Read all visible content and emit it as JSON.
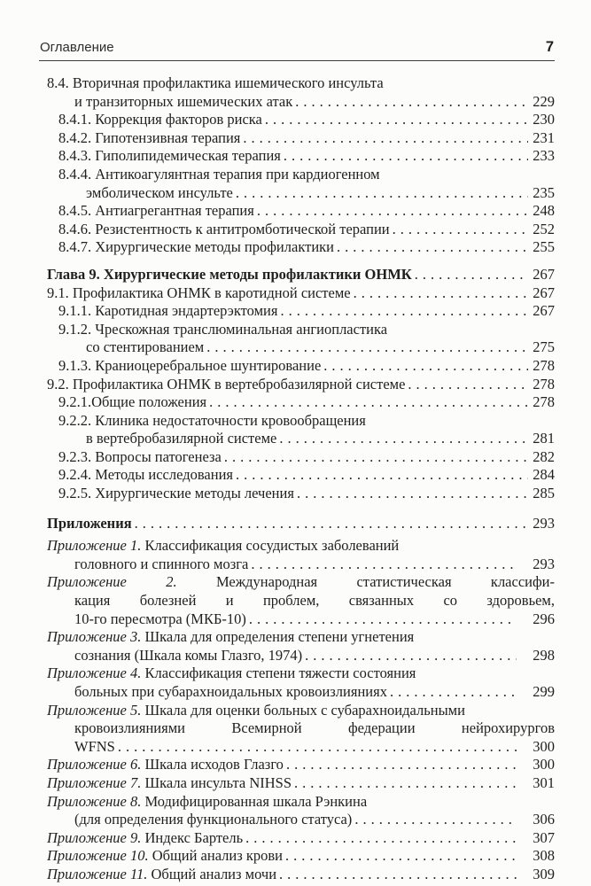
{
  "page": {
    "header": {
      "running_title": "Оглавление",
      "page_number": "7"
    },
    "toc": {
      "entries": [
        {
          "indent": 1,
          "page": "229",
          "page_gap": false,
          "gap_before": "none",
          "lines": [
            {
              "cont": false,
              "justify": false,
              "segments": [
                {
                  "text": "8.4. Вторичная профилактика ишемического инсульта",
                  "style": "normal"
                }
              ]
            },
            {
              "cont": true,
              "justify": false,
              "segments": [
                {
                  "text": "и транзиторных ишемических атак",
                  "style": "normal"
                }
              ]
            }
          ]
        },
        {
          "indent": 2,
          "page": "230",
          "page_gap": false,
          "gap_before": "none",
          "lines": [
            {
              "cont": false,
              "justify": false,
              "segments": [
                {
                  "text": "8.4.1. Коррекция факторов риска",
                  "style": "normal"
                }
              ]
            }
          ]
        },
        {
          "indent": 2,
          "page": "231",
          "page_gap": false,
          "gap_before": "none",
          "lines": [
            {
              "cont": false,
              "justify": false,
              "segments": [
                {
                  "text": "8.4.2. Гипотензивная терапия",
                  "style": "normal"
                }
              ]
            }
          ]
        },
        {
          "indent": 2,
          "page": "233",
          "page_gap": false,
          "gap_before": "none",
          "lines": [
            {
              "cont": false,
              "justify": false,
              "segments": [
                {
                  "text": "8.4.3. Гиполипидемическая терапия",
                  "style": "normal"
                }
              ]
            }
          ]
        },
        {
          "indent": 2,
          "page": "235",
          "page_gap": false,
          "gap_before": "none",
          "lines": [
            {
              "cont": false,
              "justify": false,
              "segments": [
                {
                  "text": "8.4.4. Антикоагулянтная терапия при кардиогенном",
                  "style": "normal"
                }
              ]
            },
            {
              "cont": true,
              "justify": false,
              "segments": [
                {
                  "text": "эмболическом инсульте",
                  "style": "normal"
                }
              ]
            }
          ]
        },
        {
          "indent": 2,
          "page": "248",
          "page_gap": false,
          "gap_before": "none",
          "lines": [
            {
              "cont": false,
              "justify": false,
              "segments": [
                {
                  "text": "8.4.5. Антиагрегантная терапия",
                  "style": "normal"
                }
              ]
            }
          ]
        },
        {
          "indent": 2,
          "page": "252",
          "page_gap": false,
          "gap_before": "none",
          "lines": [
            {
              "cont": false,
              "justify": false,
              "segments": [
                {
                  "text": "8.4.6. Резистентность к антитромботической терапии",
                  "style": "normal"
                }
              ]
            }
          ]
        },
        {
          "indent": 2,
          "page": "255",
          "page_gap": false,
          "gap_before": "none",
          "lines": [
            {
              "cont": false,
              "justify": false,
              "segments": [
                {
                  "text": "8.4.7. Хирургические методы профилактики",
                  "style": "normal"
                }
              ]
            }
          ]
        },
        {
          "indent": 1,
          "page": "267",
          "page_gap": false,
          "gap_before": "md",
          "lines": [
            {
              "cont": false,
              "justify": false,
              "segments": [
                {
                  "text": "Глава 9. Хирургические методы профилактики ОНМК",
                  "style": "bold"
                }
              ]
            }
          ]
        },
        {
          "indent": 1,
          "page": "267",
          "page_gap": false,
          "gap_before": "none",
          "lines": [
            {
              "cont": false,
              "justify": false,
              "segments": [
                {
                  "text": "9.1. Профилактика ОНМК в каротидной системе",
                  "style": "normal"
                }
              ]
            }
          ]
        },
        {
          "indent": 2,
          "page": "267",
          "page_gap": false,
          "gap_before": "none",
          "lines": [
            {
              "cont": false,
              "justify": false,
              "segments": [
                {
                  "text": "9.1.1. Каротидная эндартерэктомия",
                  "style": "normal"
                }
              ]
            }
          ]
        },
        {
          "indent": 2,
          "page": "275",
          "page_gap": false,
          "gap_before": "none",
          "lines": [
            {
              "cont": false,
              "justify": false,
              "segments": [
                {
                  "text": "9.1.2. Чрескожная транслюминальная ангиопластика",
                  "style": "normal"
                }
              ]
            },
            {
              "cont": true,
              "justify": false,
              "segments": [
                {
                  "text": "со стентированием",
                  "style": "normal"
                }
              ]
            }
          ]
        },
        {
          "indent": 2,
          "page": "278",
          "page_gap": false,
          "gap_before": "none",
          "lines": [
            {
              "cont": false,
              "justify": false,
              "segments": [
                {
                  "text": "9.1.3. Краниоцеребральное шунтирование",
                  "style": "normal"
                }
              ]
            }
          ]
        },
        {
          "indent": 1,
          "page": "278",
          "page_gap": false,
          "gap_before": "none",
          "lines": [
            {
              "cont": false,
              "justify": false,
              "segments": [
                {
                  "text": "9.2. Профилактика ОНМК в вертебробазилярной системе",
                  "style": "normal"
                }
              ]
            }
          ]
        },
        {
          "indent": 2,
          "page": "278",
          "page_gap": false,
          "gap_before": "none",
          "lines": [
            {
              "cont": false,
              "justify": false,
              "segments": [
                {
                  "text": "9.2.1.Общие положения",
                  "style": "normal"
                }
              ]
            }
          ]
        },
        {
          "indent": 2,
          "page": "281",
          "page_gap": false,
          "gap_before": "none",
          "lines": [
            {
              "cont": false,
              "justify": false,
              "segments": [
                {
                  "text": "9.2.2. Клиника недостаточности кровообращения",
                  "style": "normal"
                }
              ]
            },
            {
              "cont": true,
              "justify": false,
              "segments": [
                {
                  "text": "в вертебробазилярной системе",
                  "style": "normal"
                }
              ]
            }
          ]
        },
        {
          "indent": 2,
          "page": "282",
          "page_gap": false,
          "gap_before": "none",
          "lines": [
            {
              "cont": false,
              "justify": false,
              "segments": [
                {
                  "text": "9.2.3. Вопросы патогенеза",
                  "style": "normal"
                }
              ]
            }
          ]
        },
        {
          "indent": 2,
          "page": "284",
          "page_gap": false,
          "gap_before": "none",
          "lines": [
            {
              "cont": false,
              "justify": false,
              "segments": [
                {
                  "text": "9.2.4. Методы исследования",
                  "style": "normal"
                }
              ]
            }
          ]
        },
        {
          "indent": 2,
          "page": "285",
          "page_gap": false,
          "gap_before": "none",
          "lines": [
            {
              "cont": false,
              "justify": false,
              "segments": [
                {
                  "text": "9.2.5. Хирургические методы лечения",
                  "style": "normal"
                }
              ]
            }
          ]
        },
        {
          "indent": 1,
          "page": "293",
          "page_gap": false,
          "gap_before": "lg",
          "lines": [
            {
              "cont": false,
              "justify": false,
              "segments": [
                {
                  "text": "Приложения",
                  "style": "bold"
                }
              ]
            }
          ]
        },
        {
          "indent": 1,
          "page": "293",
          "page_gap": true,
          "gap_before": "sm",
          "lines": [
            {
              "cont": false,
              "justify": false,
              "segments": [
                {
                  "text": "Приложение 1.",
                  "style": "italic"
                },
                {
                  "text": " Классификация сосудистых заболеваний",
                  "style": "normal"
                }
              ]
            },
            {
              "cont": true,
              "justify": false,
              "segments": [
                {
                  "text": "головного и спинного мозга",
                  "style": "normal"
                }
              ]
            }
          ]
        },
        {
          "indent": 1,
          "page": "296",
          "page_gap": true,
          "gap_before": "none",
          "lines": [
            {
              "cont": false,
              "justify": true,
              "segments": [
                {
                  "text": "Приложение 2.",
                  "style": "italic"
                },
                {
                  "text": " Международная статистическая классифи-",
                  "style": "normal"
                }
              ]
            },
            {
              "cont": true,
              "justify": true,
              "segments": [
                {
                  "text": "кация болезней и проблем, связанных со здоровьем,",
                  "style": "normal"
                }
              ]
            },
            {
              "cont": true,
              "justify": false,
              "segments": [
                {
                  "text": "10-го пересмотра (МКБ-10)",
                  "style": "normal"
                }
              ]
            }
          ]
        },
        {
          "indent": 1,
          "page": "298",
          "page_gap": true,
          "gap_before": "none",
          "lines": [
            {
              "cont": false,
              "justify": false,
              "segments": [
                {
                  "text": "Приложение 3.",
                  "style": "italic"
                },
                {
                  "text": " Шкала для определения степени угнетения",
                  "style": "normal"
                }
              ]
            },
            {
              "cont": true,
              "justify": false,
              "segments": [
                {
                  "text": "сознания (Шкала комы Глазго, 1974)",
                  "style": "normal"
                }
              ]
            }
          ]
        },
        {
          "indent": 1,
          "page": "299",
          "page_gap": true,
          "gap_before": "none",
          "lines": [
            {
              "cont": false,
              "justify": false,
              "segments": [
                {
                  "text": "Приложение 4.",
                  "style": "italic"
                },
                {
                  "text": " Классификация степени тяжести состояния",
                  "style": "normal"
                }
              ]
            },
            {
              "cont": true,
              "justify": false,
              "segments": [
                {
                  "text": "больных при субарахноидальных кровоизлияниях",
                  "style": "normal"
                }
              ]
            }
          ]
        },
        {
          "indent": 1,
          "page": "300",
          "page_gap": true,
          "gap_before": "none",
          "lines": [
            {
              "cont": false,
              "justify": false,
              "segments": [
                {
                  "text": "Приложение 5.",
                  "style": "italic"
                },
                {
                  "text": " Шкала для оценки больных с субарахноидальными",
                  "style": "normal"
                }
              ]
            },
            {
              "cont": true,
              "justify": true,
              "segments": [
                {
                  "text": "кровоизлияниями Всемирной федерации нейрохирургов",
                  "style": "normal"
                }
              ]
            },
            {
              "cont": true,
              "justify": false,
              "segments": [
                {
                  "text": "WFNS",
                  "style": "normal"
                }
              ]
            }
          ]
        },
        {
          "indent": 1,
          "page": "300",
          "page_gap": true,
          "gap_before": "none",
          "lines": [
            {
              "cont": false,
              "justify": false,
              "segments": [
                {
                  "text": "Приложение 6.",
                  "style": "italic"
                },
                {
                  "text": " Шкала исходов Глазго",
                  "style": "normal"
                }
              ]
            }
          ]
        },
        {
          "indent": 1,
          "page": "301",
          "page_gap": true,
          "gap_before": "none",
          "lines": [
            {
              "cont": false,
              "justify": false,
              "segments": [
                {
                  "text": "Приложение 7.",
                  "style": "italic"
                },
                {
                  "text": " Шкала инсульта NIHSS",
                  "style": "normal"
                }
              ]
            }
          ]
        },
        {
          "indent": 1,
          "page": "306",
          "page_gap": true,
          "gap_before": "none",
          "lines": [
            {
              "cont": false,
              "justify": false,
              "segments": [
                {
                  "text": "Приложение 8.",
                  "style": "italic"
                },
                {
                  "text": " Модифицированная шкала Рэнкина",
                  "style": "normal"
                }
              ]
            },
            {
              "cont": true,
              "justify": false,
              "segments": [
                {
                  "text": "(для определения функционального статуса)",
                  "style": "normal"
                }
              ]
            }
          ]
        },
        {
          "indent": 1,
          "page": "307",
          "page_gap": true,
          "gap_before": "none",
          "lines": [
            {
              "cont": false,
              "justify": false,
              "segments": [
                {
                  "text": "Приложение 9.",
                  "style": "italic"
                },
                {
                  "text": " Индекс Бартель",
                  "style": "normal"
                }
              ]
            }
          ]
        },
        {
          "indent": 1,
          "page": "308",
          "page_gap": true,
          "gap_before": "none",
          "lines": [
            {
              "cont": false,
              "justify": false,
              "segments": [
                {
                  "text": "Приложение 10.",
                  "style": "italic"
                },
                {
                  "text": " Общий анализ крови",
                  "style": "normal"
                }
              ]
            }
          ]
        },
        {
          "indent": 1,
          "page": "309",
          "page_gap": true,
          "gap_before": "none",
          "lines": [
            {
              "cont": false,
              "justify": false,
              "segments": [
                {
                  "text": "Приложение 11.",
                  "style": "italic"
                },
                {
                  "text": " Общий анализ мочи",
                  "style": "normal"
                }
              ]
            }
          ]
        }
      ]
    }
  }
}
